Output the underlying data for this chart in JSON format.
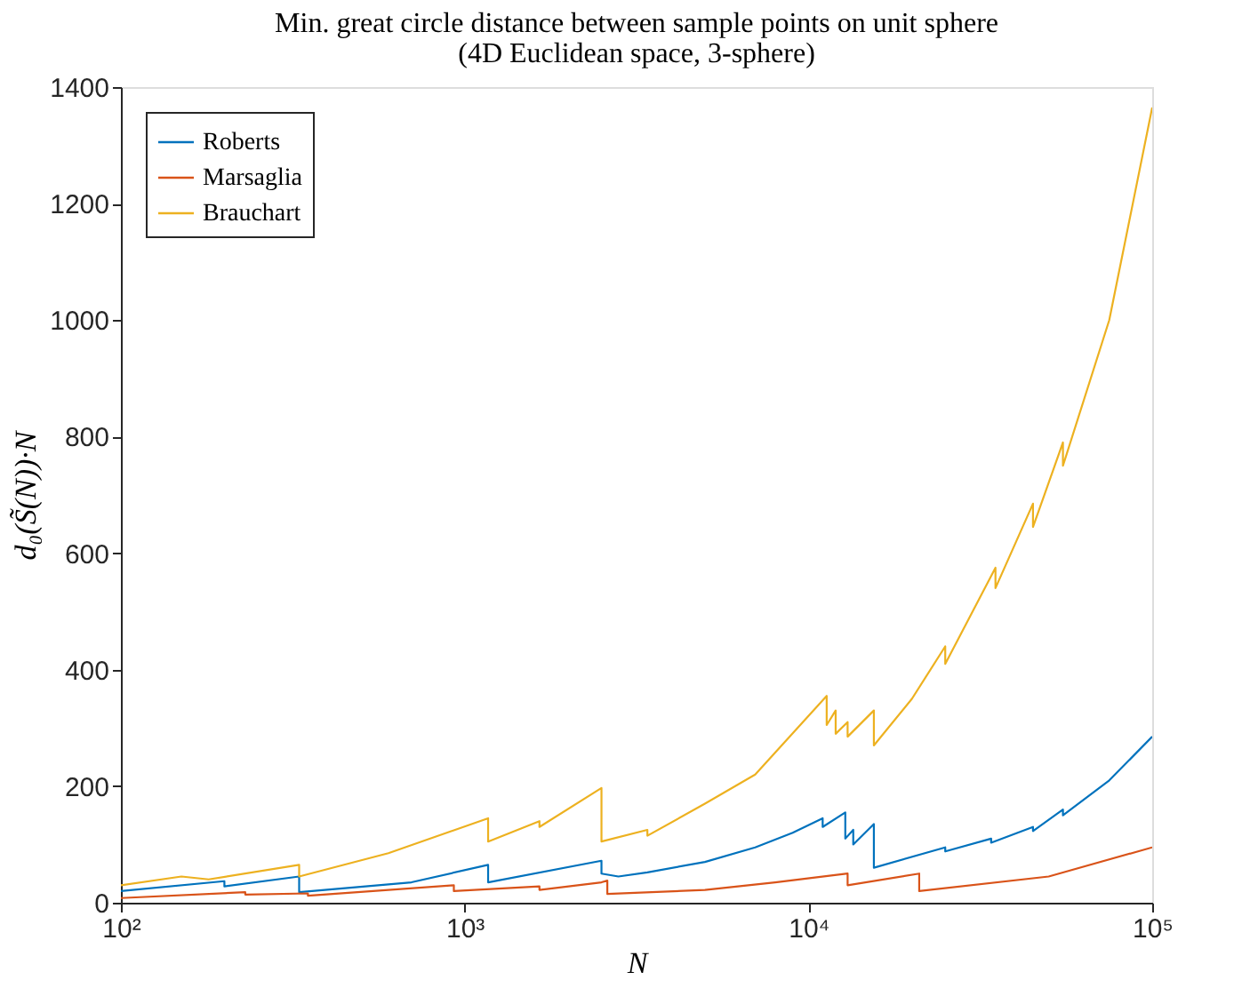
{
  "chart_data": {
    "type": "line",
    "title": "Min. great circle distance between sample points on unit sphere",
    "subtitle": "(4D Euclidean space, 3-sphere)",
    "xlabel": "N",
    "ylabel": "d₀(S̃(N))·N",
    "log": "x",
    "xlim": [
      100,
      100000
    ],
    "xticks": [
      {
        "value": 100,
        "label": "10²"
      },
      {
        "value": 1000,
        "label": "10³"
      },
      {
        "value": 10000,
        "label": "10⁴"
      },
      {
        "value": 100000,
        "label": "10⁵"
      }
    ],
    "ylim": [
      0,
      1400
    ],
    "yticks": [
      0,
      200,
      400,
      600,
      800,
      1000,
      1200,
      1400
    ],
    "grid": false,
    "legend": "top left",
    "marker": "none",
    "line_style": "solid",
    "series": [
      {
        "name": "Roberts",
        "color": "#0072bd",
        "x": [
          100,
          200,
          200,
          330,
          330,
          700,
          1170,
          1170,
          2500,
          2500,
          2800,
          3400,
          5000,
          7000,
          9000,
          11000,
          11000,
          12800,
          12800,
          13500,
          13500,
          15500,
          15500,
          25000,
          25000,
          34000,
          34000,
          45000,
          45000,
          55000,
          55000,
          75000,
          100000
        ],
        "values": [
          20,
          37,
          28,
          45,
          18,
          35,
          65,
          35,
          72,
          50,
          45,
          52,
          70,
          95,
          120,
          145,
          130,
          155,
          110,
          125,
          100,
          135,
          60,
          95,
          88,
          110,
          103,
          130,
          123,
          160,
          150,
          210,
          285
        ]
      },
      {
        "name": "Marsaglia",
        "color": "#d95319",
        "x": [
          100,
          230,
          230,
          350,
          350,
          930,
          930,
          1650,
          1650,
          2500,
          2600,
          2600,
          5000,
          8000,
          13000,
          13000,
          21000,
          21000,
          50000,
          100000
        ],
        "values": [
          8,
          18,
          14,
          16,
          12,
          30,
          20,
          28,
          22,
          35,
          38,
          15,
          22,
          35,
          50,
          30,
          50,
          20,
          45,
          95
        ]
      },
      {
        "name": "Brauchart",
        "color": "#edb120",
        "x": [
          100,
          150,
          180,
          330,
          330,
          600,
          1170,
          1170,
          1650,
          1650,
          2500,
          2500,
          3400,
          3400,
          5000,
          7000,
          11300,
          11300,
          12000,
          12000,
          13000,
          13000,
          15500,
          15500,
          20000,
          25000,
          25000,
          35000,
          35000,
          45000,
          45000,
          55000,
          55000,
          75000,
          100000
        ],
        "values": [
          30,
          45,
          40,
          65,
          45,
          85,
          145,
          105,
          140,
          130,
          197,
          105,
          125,
          115,
          170,
          220,
          355,
          305,
          330,
          290,
          310,
          285,
          330,
          270,
          350,
          440,
          410,
          575,
          540,
          685,
          645,
          790,
          750,
          1000,
          1365
        ]
      }
    ]
  }
}
